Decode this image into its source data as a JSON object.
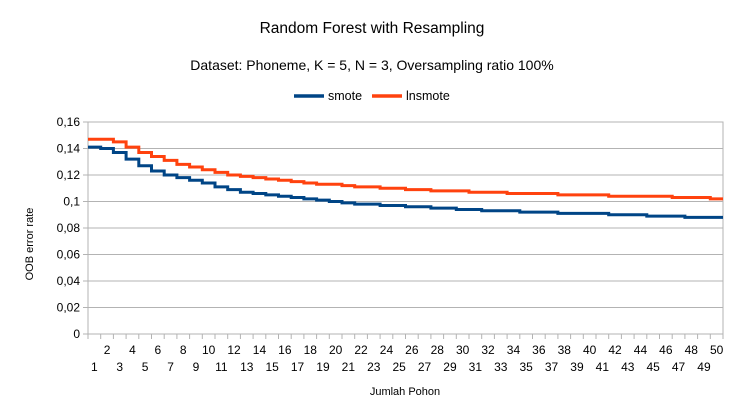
{
  "chart_data": {
    "type": "line",
    "title": "Random Forest with Resampling",
    "subtitle": "Dataset: Phoneme, K = 5, N = 3, Oversampling ratio 100%",
    "xlabel": "Jumlah Pohon",
    "ylabel": "OOB error rate",
    "ylim": [
      0,
      0.16
    ],
    "yticks": [
      "0",
      "0,02",
      "0,04",
      "0,06",
      "0,08",
      "0,1",
      "0,12",
      "0,14",
      "0,16"
    ],
    "grid": true,
    "legend": "top",
    "x": [
      1,
      2,
      3,
      4,
      5,
      6,
      7,
      8,
      9,
      10,
      11,
      12,
      13,
      14,
      15,
      16,
      17,
      18,
      19,
      20,
      21,
      22,
      23,
      24,
      25,
      26,
      27,
      28,
      29,
      30,
      31,
      32,
      33,
      34,
      35,
      36,
      37,
      38,
      39,
      40,
      41,
      42,
      43,
      44,
      45,
      46,
      47,
      48,
      49,
      50
    ],
    "series": [
      {
        "name": "smote",
        "color": "#004586",
        "values": [
          0.141,
          0.14,
          0.137,
          0.132,
          0.127,
          0.123,
          0.12,
          0.118,
          0.116,
          0.114,
          0.111,
          0.109,
          0.107,
          0.106,
          0.105,
          0.104,
          0.103,
          0.102,
          0.101,
          0.1,
          0.099,
          0.098,
          0.098,
          0.097,
          0.097,
          0.096,
          0.096,
          0.095,
          0.095,
          0.094,
          0.094,
          0.093,
          0.093,
          0.093,
          0.092,
          0.092,
          0.092,
          0.091,
          0.091,
          0.091,
          0.091,
          0.09,
          0.09,
          0.09,
          0.089,
          0.089,
          0.089,
          0.088,
          0.088,
          0.088
        ]
      },
      {
        "name": "lnsmote",
        "color": "#ff420e",
        "values": [
          0.147,
          0.147,
          0.145,
          0.141,
          0.137,
          0.134,
          0.131,
          0.128,
          0.126,
          0.124,
          0.122,
          0.12,
          0.119,
          0.118,
          0.117,
          0.116,
          0.115,
          0.114,
          0.113,
          0.113,
          0.112,
          0.111,
          0.111,
          0.11,
          0.11,
          0.109,
          0.109,
          0.108,
          0.108,
          0.108,
          0.107,
          0.107,
          0.107,
          0.106,
          0.106,
          0.106,
          0.106,
          0.105,
          0.105,
          0.105,
          0.105,
          0.104,
          0.104,
          0.104,
          0.104,
          0.104,
          0.103,
          0.103,
          0.103,
          0.102
        ]
      }
    ]
  }
}
